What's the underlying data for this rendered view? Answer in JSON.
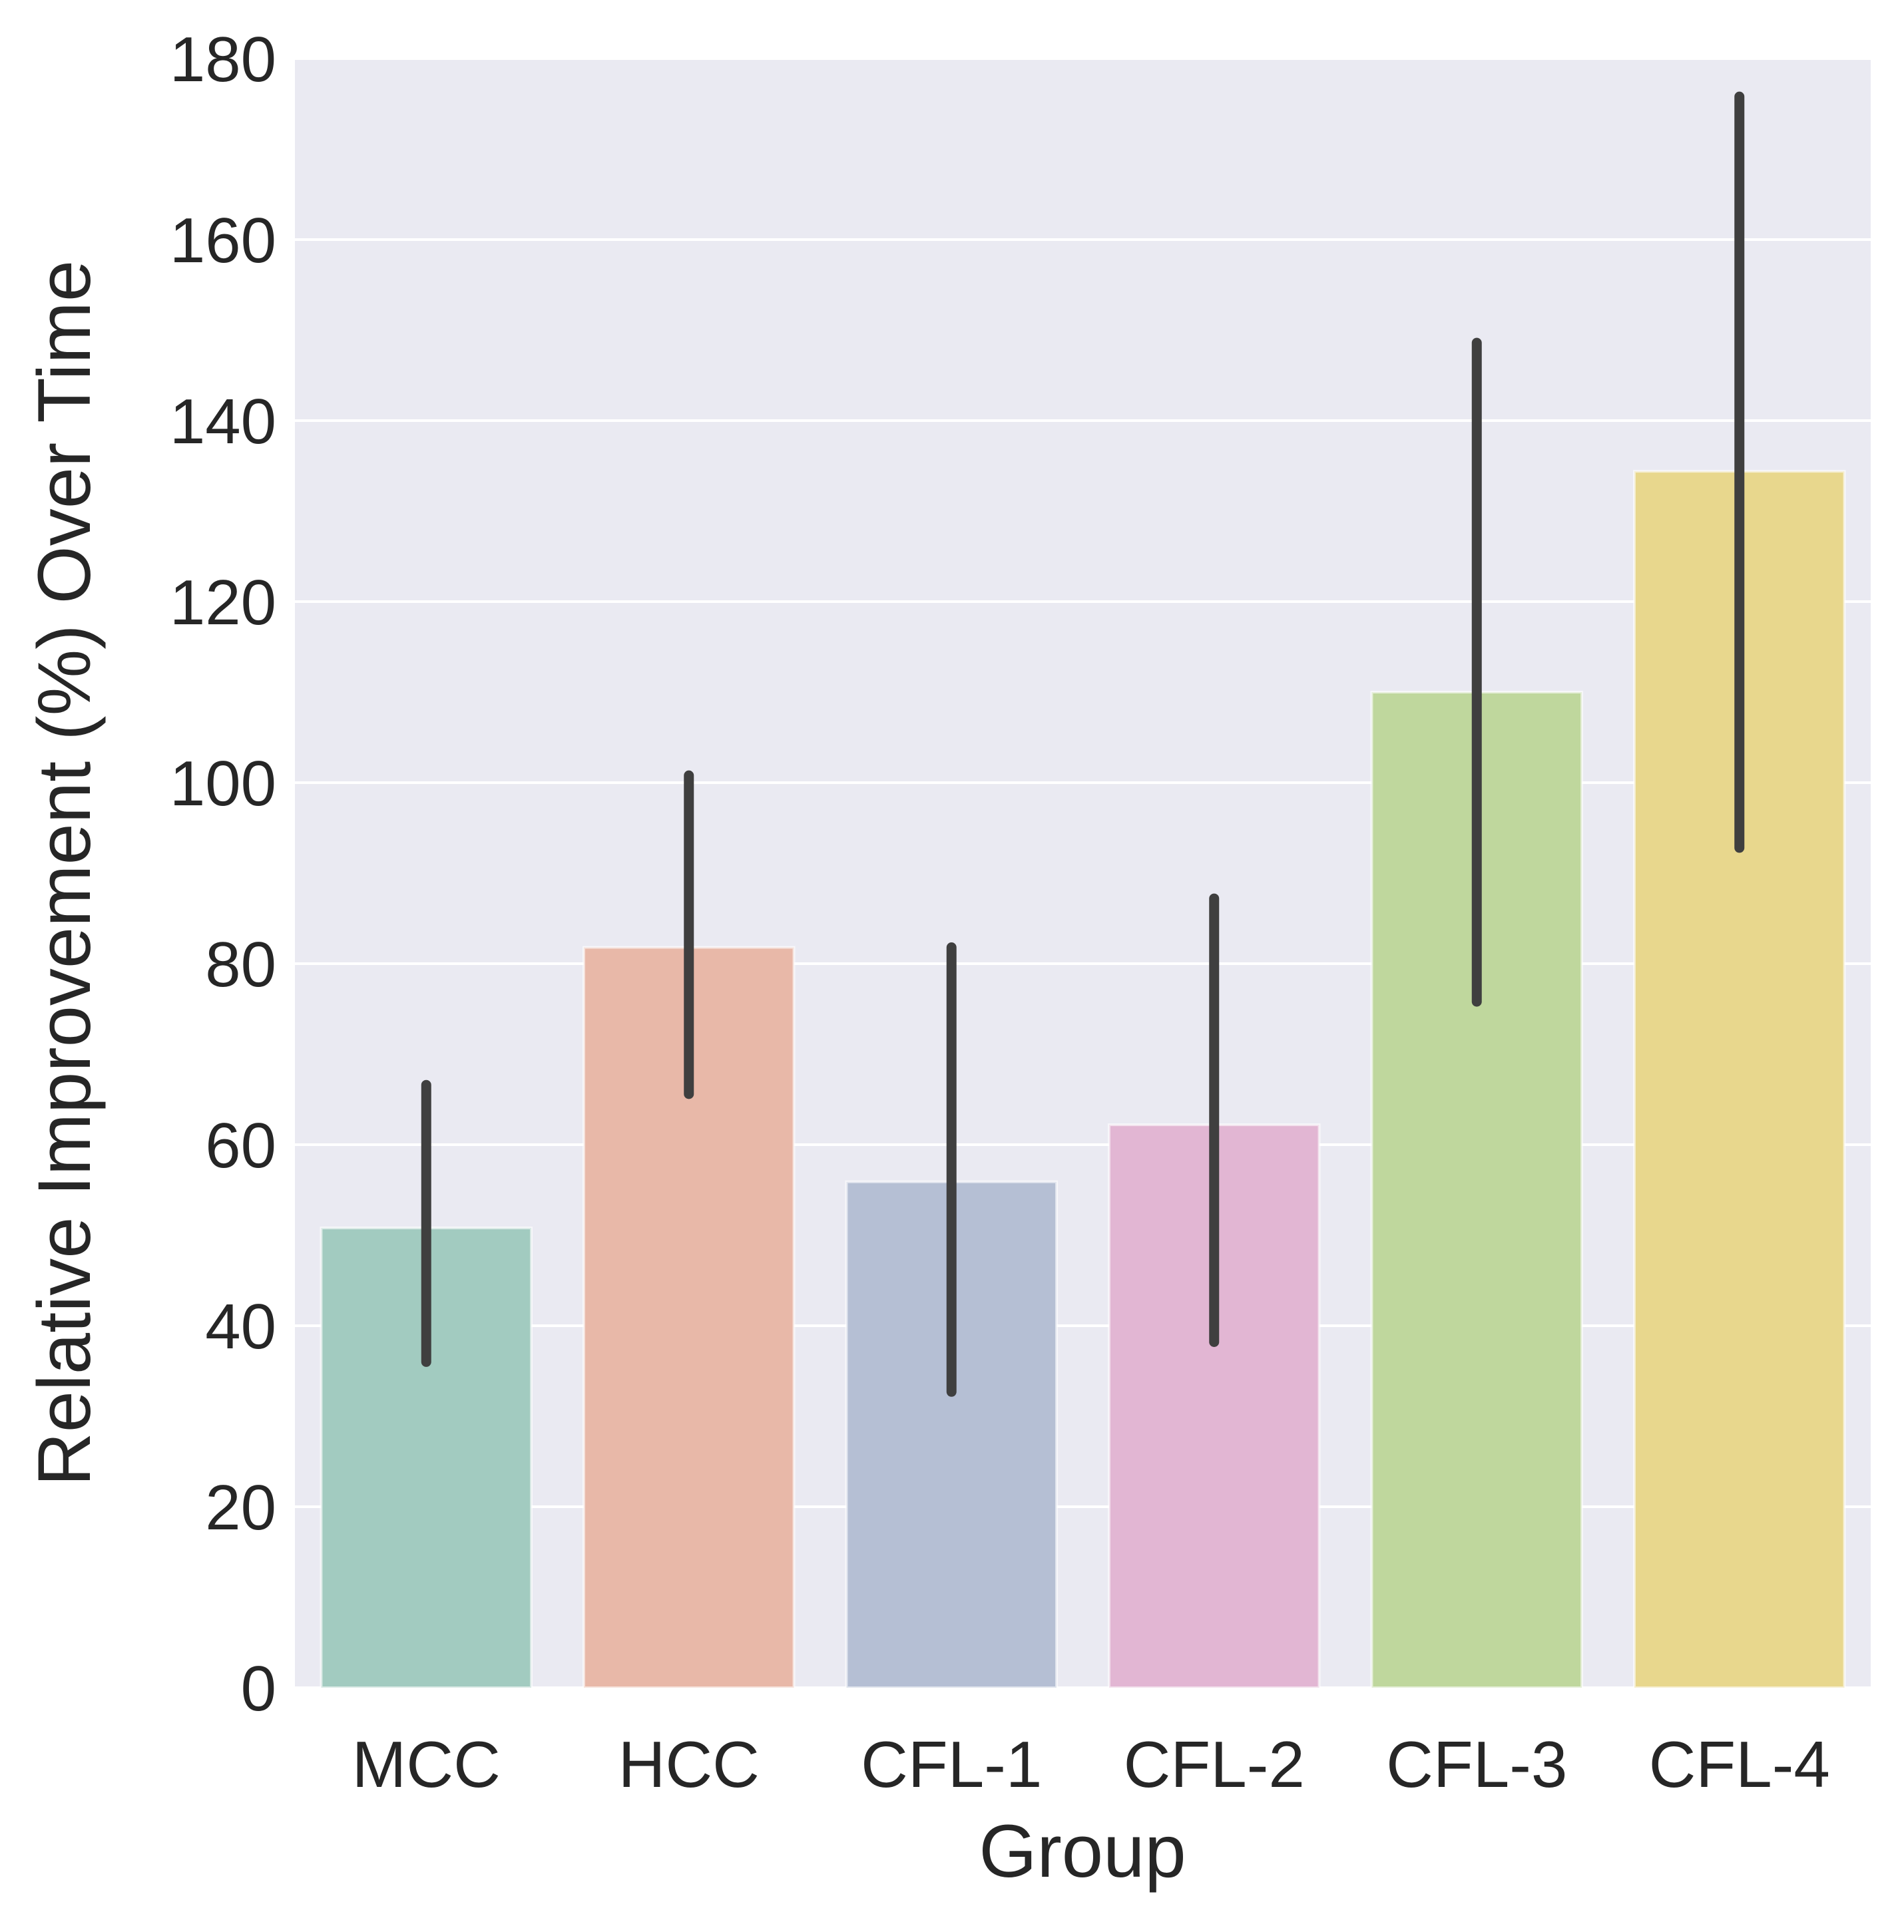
{
  "chart_data": {
    "type": "bar",
    "title": "",
    "xlabel": "Group",
    "ylabel": "Relative Improvement (%) Over Time",
    "categories": [
      "MCC",
      "HCC",
      "CFL-1",
      "CFL-2",
      "CFL-3",
      "CFL-4"
    ],
    "values": [
      50.8,
      81.8,
      55.9,
      62.2,
      110.0,
      134.4
    ],
    "error_bars": [
      {
        "low": 36.0,
        "high": 66.6
      },
      {
        "low": 65.6,
        "high": 100.8
      },
      {
        "low": 32.7,
        "high": 81.8
      },
      {
        "low": 38.2,
        "high": 87.2
      },
      {
        "low": 75.8,
        "high": 148.6
      },
      {
        "low": 92.8,
        "high": 175.8
      }
    ],
    "ylim": [
      0,
      180
    ],
    "yticks": [
      0,
      20,
      40,
      60,
      80,
      100,
      120,
      140,
      160,
      180
    ],
    "grid": true,
    "legend": "none",
    "colors": {
      "bars": [
        "#a2cbc0",
        "#e8b8a8",
        "#b5bfd4",
        "#e2b6d3",
        "#bfd79d",
        "#e8d78d"
      ],
      "error_bar": "#3f3f3f",
      "plot_background": "#eaeaf2",
      "grid": "#ffffff",
      "text": "#262626"
    }
  }
}
